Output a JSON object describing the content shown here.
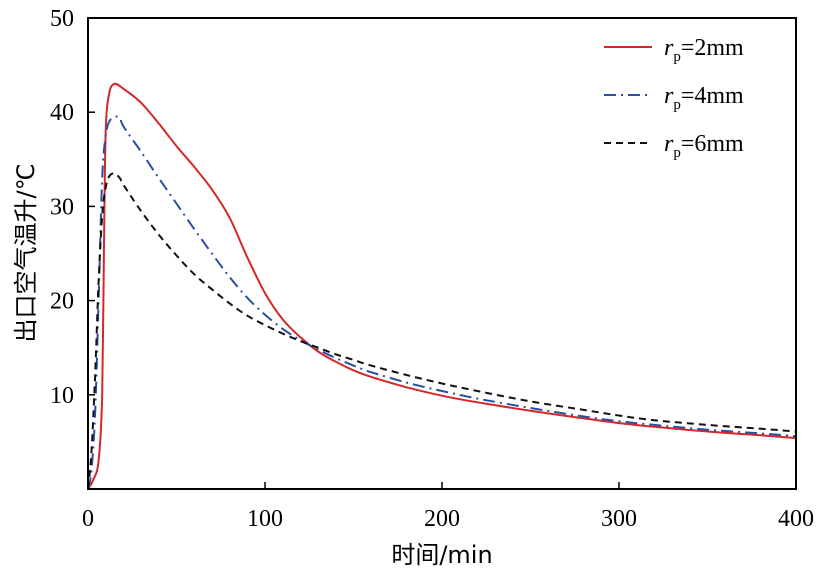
{
  "chart_data": {
    "type": "line",
    "xlabel": "时间/min",
    "ylabel": "出口空气温升/℃",
    "xlim": [
      0,
      400
    ],
    "ylim": [
      0,
      50
    ],
    "x_ticks": [
      0,
      100,
      200,
      300,
      400
    ],
    "y_ticks": [
      10,
      20,
      30,
      40,
      50
    ],
    "grid": false,
    "legend_position": "top-right",
    "series": [
      {
        "name": "rp=2mm",
        "name_main": "r",
        "name_sub": "p",
        "name_rest": "=2mm",
        "color": "#d62728",
        "dash": "solid",
        "x": [
          0,
          3,
          6,
          8,
          9,
          10,
          12,
          15,
          20,
          30,
          40,
          50,
          60,
          70,
          80,
          90,
          100,
          110,
          120,
          130,
          140,
          150,
          160,
          180,
          200,
          220,
          250,
          280,
          300,
          320,
          350,
          380,
          400
        ],
        "y": [
          0,
          1,
          3,
          10,
          25,
          38,
          42,
          43,
          42.5,
          41,
          38.8,
          36.4,
          34.2,
          31.8,
          28.8,
          24.6,
          20.8,
          18,
          16.1,
          14.6,
          13.5,
          12.6,
          11.9,
          10.8,
          9.9,
          9.2,
          8.3,
          7.5,
          7,
          6.6,
          6.1,
          5.7,
          5.4
        ]
      },
      {
        "name": "rp=4mm",
        "name_main": "r",
        "name_sub": "p",
        "name_rest": "=4mm",
        "color": "#2a4f9e",
        "dash": "dashdot",
        "x": [
          0,
          2,
          4,
          6,
          8,
          10,
          12,
          15,
          18,
          20,
          30,
          40,
          50,
          60,
          70,
          80,
          90,
          100,
          110,
          120,
          130,
          140,
          150,
          160,
          180,
          200,
          220,
          250,
          280,
          300,
          320,
          350,
          380,
          400
        ],
        "y": [
          0,
          2,
          8,
          20,
          33,
          37.5,
          39,
          39.5,
          39.4,
          38.5,
          35.8,
          33,
          30.3,
          27.6,
          25,
          22.5,
          20.3,
          18.5,
          17,
          15.8,
          14.8,
          13.9,
          13.1,
          12.4,
          11.3,
          10.4,
          9.6,
          8.6,
          7.7,
          7.2,
          6.8,
          6.3,
          5.9,
          5.6
        ]
      },
      {
        "name": "rp=6mm",
        "name_main": "r",
        "name_sub": "p",
        "name_rest": "=6mm",
        "color": "#111111",
        "dash": "dashed",
        "x": [
          0,
          2,
          4,
          6,
          8,
          10,
          12,
          15,
          18,
          20,
          30,
          40,
          50,
          60,
          70,
          80,
          90,
          100,
          110,
          120,
          130,
          140,
          150,
          160,
          180,
          200,
          220,
          250,
          280,
          300,
          320,
          350,
          380,
          400
        ],
        "y": [
          0,
          4,
          12,
          22,
          29,
          32,
          33.2,
          33.5,
          33,
          32.3,
          29.5,
          27,
          24.8,
          22.8,
          21.2,
          19.7,
          18.4,
          17.4,
          16.5,
          15.7,
          15,
          14.3,
          13.7,
          13.1,
          12.1,
          11.2,
          10.4,
          9.3,
          8.4,
          7.8,
          7.3,
          6.8,
          6.4,
          6.1
        ]
      }
    ]
  }
}
